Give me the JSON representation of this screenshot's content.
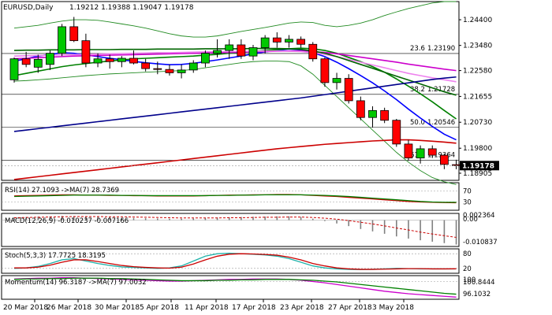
{
  "chart_data": [
    {
      "type": "candlestick",
      "title": "EURUSD,Daily",
      "ohlc_label": "1.19212 1.19388 1.19047 1.19178",
      "x_tick_labels": [
        "20 Mar 2018",
        "26 Mar 2018",
        "30 Mar 2018",
        "5 Apr 2018",
        "11 Apr 2018",
        "17 Apr 2018",
        "23 Apr 2018",
        "27 Apr 2018",
        "3 May 2018"
      ],
      "y_tick_labels": [
        "1.24400",
        "1.23480",
        "1.22580",
        "1.21655",
        "1.20730",
        "1.19800",
        "1.18905"
      ],
      "ylim": [
        1.1865,
        1.2505
      ],
      "current_price": 1.19178,
      "current_price_label": "1.19178",
      "fib_levels": [
        {
          "label": "23.6",
          "value_label": "1.23190",
          "value": 1.2319
        },
        {
          "label": "38.2",
          "value_label": "1.21728",
          "value": 1.21728
        },
        {
          "label": "50.0",
          "value_label": "1.20546",
          "value": 1.20546
        },
        {
          "label": "61.8",
          "value_label": "1.19364",
          "value": 1.19364
        }
      ],
      "candles": [
        {
          "o": 1.2225,
          "h": 1.2305,
          "l": 1.2215,
          "c": 1.23
        },
        {
          "o": 1.23,
          "h": 1.2325,
          "l": 1.227,
          "c": 1.228
        },
        {
          "o": 1.227,
          "h": 1.2315,
          "l": 1.225,
          "c": 1.2298
        },
        {
          "o": 1.228,
          "h": 1.233,
          "l": 1.226,
          "c": 1.232
        },
        {
          "o": 1.232,
          "h": 1.2425,
          "l": 1.231,
          "c": 1.2415
        },
        {
          "o": 1.2415,
          "h": 1.245,
          "l": 1.236,
          "c": 1.2365
        },
        {
          "o": 1.2365,
          "h": 1.239,
          "l": 1.227,
          "c": 1.2285
        },
        {
          "o": 1.2285,
          "h": 1.232,
          "l": 1.227,
          "c": 1.23
        },
        {
          "o": 1.23,
          "h": 1.2315,
          "l": 1.2265,
          "c": 1.229
        },
        {
          "o": 1.229,
          "h": 1.231,
          "l": 1.227,
          "c": 1.2302
        },
        {
          "o": 1.2302,
          "h": 1.233,
          "l": 1.228,
          "c": 1.2285
        },
        {
          "o": 1.2285,
          "h": 1.23,
          "l": 1.2255,
          "c": 1.2265
        },
        {
          "o": 1.2265,
          "h": 1.229,
          "l": 1.2245,
          "c": 1.2262
        },
        {
          "o": 1.2262,
          "h": 1.228,
          "l": 1.224,
          "c": 1.225
        },
        {
          "o": 1.225,
          "h": 1.228,
          "l": 1.223,
          "c": 1.226
        },
        {
          "o": 1.226,
          "h": 1.2295,
          "l": 1.225,
          "c": 1.2285
        },
        {
          "o": 1.2285,
          "h": 1.233,
          "l": 1.227,
          "c": 1.232
        },
        {
          "o": 1.232,
          "h": 1.237,
          "l": 1.2305,
          "c": 1.233
        },
        {
          "o": 1.233,
          "h": 1.237,
          "l": 1.23,
          "c": 1.235
        },
        {
          "o": 1.235,
          "h": 1.237,
          "l": 1.23,
          "c": 1.231
        },
        {
          "o": 1.231,
          "h": 1.235,
          "l": 1.2295,
          "c": 1.234
        },
        {
          "o": 1.234,
          "h": 1.2385,
          "l": 1.232,
          "c": 1.2375
        },
        {
          "o": 1.2375,
          "h": 1.2395,
          "l": 1.234,
          "c": 1.236
        },
        {
          "o": 1.236,
          "h": 1.2385,
          "l": 1.234,
          "c": 1.237
        },
        {
          "o": 1.237,
          "h": 1.238,
          "l": 1.234,
          "c": 1.2352
        },
        {
          "o": 1.2352,
          "h": 1.236,
          "l": 1.229,
          "c": 1.23
        },
        {
          "o": 1.23,
          "h": 1.2305,
          "l": 1.22,
          "c": 1.2215
        },
        {
          "o": 1.2215,
          "h": 1.225,
          "l": 1.219,
          "c": 1.223
        },
        {
          "o": 1.223,
          "h": 1.2245,
          "l": 1.214,
          "c": 1.215
        },
        {
          "o": 1.215,
          "h": 1.2165,
          "l": 1.208,
          "c": 1.209
        },
        {
          "o": 1.209,
          "h": 1.213,
          "l": 1.2055,
          "c": 1.2115
        },
        {
          "o": 1.2115,
          "h": 1.2125,
          "l": 1.207,
          "c": 1.208
        },
        {
          "o": 1.208,
          "h": 1.2085,
          "l": 1.1985,
          "c": 1.1995
        },
        {
          "o": 1.1995,
          "h": 1.201,
          "l": 1.1935,
          "c": 1.1945
        },
        {
          "o": 1.1945,
          "h": 1.199,
          "l": 1.1925,
          "c": 1.1978
        },
        {
          "o": 1.1978,
          "h": 1.199,
          "l": 1.1945,
          "c": 1.1955
        },
        {
          "o": 1.1955,
          "h": 1.196,
          "l": 1.1905,
          "c": 1.1922
        },
        {
          "o": 1.19212,
          "h": 1.19388,
          "l": 1.19047,
          "c": 1.19178
        }
      ],
      "ma_lines": [
        {
          "color": "#0000ff",
          "values": [
            1.2292,
            1.23,
            1.231,
            1.2316,
            1.2322,
            1.232,
            1.2314,
            1.2308,
            1.2302,
            1.2297,
            1.2291,
            1.2286,
            1.2282,
            1.2279,
            1.228,
            1.2284,
            1.229,
            1.2296,
            1.2303,
            1.231,
            1.2318,
            1.2325,
            1.233,
            1.2335,
            1.2332,
            1.2322,
            1.2308,
            1.2288,
            1.2265,
            1.224,
            1.2214,
            1.2185,
            1.2154,
            1.212,
            1.2088,
            1.2058,
            1.203,
            1.201
          ]
        },
        {
          "color": "#008000",
          "values": [
            1.224,
            1.2248,
            1.2256,
            1.2264,
            1.2272,
            1.2278,
            1.2283,
            1.2288,
            1.2292,
            1.2296,
            1.23,
            1.2302,
            1.2304,
            1.2306,
            1.2308,
            1.231,
            1.2313,
            1.2316,
            1.232,
            1.2323,
            1.2326,
            1.233,
            1.2333,
            1.2336,
            1.2338,
            1.2336,
            1.233,
            1.232,
            1.2305,
            1.229,
            1.2272,
            1.2252,
            1.2228,
            1.2202,
            1.2175,
            1.2146,
            1.2115,
            1.2085
          ]
        },
        {
          "color": "#cc00cc",
          "values": [
            1.23,
            1.2302,
            1.2304,
            1.2306,
            1.2308,
            1.231,
            1.2311,
            1.2312,
            1.2313,
            1.2314,
            1.2315,
            1.2316,
            1.2317,
            1.2318,
            1.2319,
            1.232,
            1.2321,
            1.2322,
            1.2323,
            1.2324,
            1.2325,
            1.2326,
            1.2327,
            1.2328,
            1.2328,
            1.2326,
            1.2323,
            1.2318,
            1.2312,
            1.2306,
            1.23,
            1.2294,
            1.2288,
            1.2281,
            1.2275,
            1.2269,
            1.2263,
            1.2258
          ]
        },
        {
          "color": "#ee82ee",
          "values": [
            1.231,
            1.2311,
            1.2312,
            1.2313,
            1.2314,
            1.2315,
            1.2316,
            1.2317,
            1.2318,
            1.2319,
            1.232,
            1.2321,
            1.2322,
            1.2322,
            1.2323,
            1.2324,
            1.2325,
            1.2326,
            1.2326,
            1.2327,
            1.2327,
            1.2328,
            1.2328,
            1.2327,
            1.2326,
            1.2322,
            1.2316,
            1.2308,
            1.2298,
            1.2288,
            1.2278,
            1.2268,
            1.2258,
            1.2248,
            1.224,
            1.2232,
            1.2225,
            1.2218
          ]
        },
        {
          "color": "#006400",
          "values": [
            1.233,
            1.2331,
            1.2331,
            1.2332,
            1.2332,
            1.2332,
            1.2333,
            1.2333,
            1.2333,
            1.2334,
            1.2334,
            1.2334,
            1.2335,
            1.2335,
            1.2335,
            1.2335,
            1.2336,
            1.2336,
            1.2336,
            1.2336,
            1.2337,
            1.2337,
            1.2337,
            1.2336,
            1.2334,
            1.2328,
            1.232,
            1.2308,
            1.2294,
            1.228,
            1.2266,
            1.2252,
            1.2238,
            1.2224,
            1.221,
            1.2196,
            1.2182,
            1.217
          ]
        },
        {
          "color": "#00008b",
          "values": [
            1.204,
            1.2045,
            1.205,
            1.2055,
            1.206,
            1.2065,
            1.207,
            1.2075,
            1.208,
            1.2085,
            1.209,
            1.2095,
            1.21,
            1.2105,
            1.211,
            1.2115,
            1.212,
            1.2125,
            1.213,
            1.2135,
            1.214,
            1.2145,
            1.215,
            1.2155,
            1.216,
            1.2166,
            1.2172,
            1.2178,
            1.2184,
            1.219,
            1.2196,
            1.2202,
            1.2208,
            1.2214,
            1.222,
            1.2226,
            1.2231,
            1.2235
          ]
        },
        {
          "color": "#cc0000",
          "values": [
            1.1868,
            1.1873,
            1.1878,
            1.1883,
            1.1888,
            1.1893,
            1.1898,
            1.1903,
            1.1908,
            1.1913,
            1.1918,
            1.1923,
            1.1928,
            1.1933,
            1.1938,
            1.1943,
            1.1948,
            1.1953,
            1.1958,
            1.1963,
            1.1968,
            1.1973,
            1.1978,
            1.1982,
            1.1986,
            1.199,
            1.1994,
            1.1997,
            1.2,
            1.2003,
            1.2006,
            1.2008,
            1.201,
            1.201,
            1.2008,
            1.2005,
            1.2002,
            1.1998
          ]
        }
      ],
      "bollinger": {
        "color": "#228b22",
        "upper": [
          1.241,
          1.2415,
          1.242,
          1.2428,
          1.2435,
          1.244,
          1.244,
          1.2438,
          1.2432,
          1.2425,
          1.2418,
          1.241,
          1.24,
          1.239,
          1.2382,
          1.2378,
          1.2378,
          1.2382,
          1.239,
          1.2398,
          1.2405,
          1.2412,
          1.242,
          1.2428,
          1.2432,
          1.243,
          1.242,
          1.2415,
          1.242,
          1.2428,
          1.244,
          1.2455,
          1.2468,
          1.248,
          1.249,
          1.25,
          1.2505,
          1.2505
        ],
        "lower": [
          1.222,
          1.2222,
          1.2225,
          1.2228,
          1.2232,
          1.2236,
          1.224,
          1.2243,
          1.2246,
          1.2248,
          1.225,
          1.2252,
          1.2254,
          1.2256,
          1.2258,
          1.2262,
          1.2268,
          1.2274,
          1.228,
          1.2286,
          1.229,
          1.2292,
          1.2292,
          1.229,
          1.2275,
          1.2245,
          1.2205,
          1.2165,
          1.2125,
          1.2085,
          1.2045,
          1.2005,
          1.1965,
          1.193,
          1.19,
          1.1875,
          1.186,
          1.185
        ]
      }
    },
    {
      "type": "line",
      "title": "RSI(14) 27.1093  ->MA(7) 28.7369",
      "y_tick_labels": [
        "70",
        "30"
      ],
      "ylim": [
        0,
        100
      ],
      "levels": [
        70,
        30
      ],
      "series": [
        {
          "color": "#cc0000",
          "values": [
            52,
            53,
            54,
            55,
            56,
            56,
            55,
            55,
            54,
            54,
            53,
            53,
            52,
            52,
            52,
            52,
            53,
            54,
            55,
            55,
            56,
            56,
            57,
            57,
            56,
            54,
            52,
            50,
            47,
            44,
            41,
            38,
            35,
            32,
            30,
            29,
            28,
            27.1
          ]
        },
        {
          "color": "#008000",
          "values": [
            50,
            51,
            52,
            53,
            54,
            55,
            55,
            55,
            55,
            54,
            54,
            53,
            53,
            53,
            53,
            53,
            53,
            54,
            54,
            55,
            55,
            56,
            56,
            56,
            56,
            55,
            54,
            52,
            50,
            47,
            44,
            41,
            38,
            35,
            32,
            30,
            29,
            28.7
          ]
        }
      ]
    },
    {
      "type": "bar",
      "title": "MACD(12,26,9) -0.010237 -0.007166",
      "y_tick_labels": [
        "0.002364",
        "0.00",
        "-0.010837"
      ],
      "ylim": [
        -0.011,
        0.0028
      ],
      "values": [
        0.0012,
        0.0013,
        0.0015,
        0.0016,
        0.0018,
        0.0017,
        0.0015,
        0.0013,
        0.0012,
        0.001,
        0.0009,
        0.0008,
        0.0007,
        0.0006,
        0.0006,
        0.0007,
        0.0009,
        0.0011,
        0.0012,
        0.0013,
        0.0014,
        0.0015,
        0.0016,
        0.0016,
        0.0013,
        0.0006,
        -0.0004,
        -0.0014,
        -0.0025,
        -0.0037,
        -0.0047,
        -0.0057,
        -0.0068,
        -0.0077,
        -0.0084,
        -0.009,
        -0.0096,
        -0.0102
      ],
      "signal": {
        "color": "#cc0000",
        "values": [
          0.001,
          0.0011,
          0.0012,
          0.0013,
          0.0014,
          0.0015,
          0.0015,
          0.0015,
          0.0014,
          0.0014,
          0.0013,
          0.0012,
          0.0011,
          0.001,
          0.0009,
          0.0009,
          0.0009,
          0.0009,
          0.001,
          0.001,
          0.0011,
          0.0012,
          0.0012,
          0.0013,
          0.0013,
          0.0011,
          0.0008,
          0.0004,
          -0.0002,
          -0.0009,
          -0.0016,
          -0.0024,
          -0.0033,
          -0.0041,
          -0.005,
          -0.0058,
          -0.0065,
          -0.0072
        ]
      }
    },
    {
      "type": "line",
      "title": "Stoch(5,3,3) 17.7725 18.3195",
      "y_tick_labels": [
        "80",
        "20"
      ],
      "ylim": [
        0,
        100
      ],
      "levels": [
        80,
        20
      ],
      "series": [
        {
          "color": "#20b2aa",
          "values": [
            20,
            22,
            28,
            40,
            55,
            60,
            50,
            40,
            32,
            26,
            24,
            22,
            20,
            22,
            30,
            50,
            70,
            80,
            82,
            80,
            78,
            75,
            70,
            60,
            45,
            30,
            22,
            18,
            16,
            15,
            16,
            18,
            20,
            19,
            18,
            18,
            18,
            17.8
          ]
        },
        {
          "color": "#cc0000",
          "values": [
            22,
            22,
            25,
            33,
            45,
            55,
            55,
            48,
            40,
            32,
            27,
            24,
            22,
            21,
            25,
            38,
            55,
            70,
            78,
            80,
            79,
            77,
            74,
            66,
            55,
            40,
            30,
            22,
            18,
            16,
            16,
            17,
            18,
            19,
            19,
            18,
            18,
            18.3
          ]
        }
      ]
    },
    {
      "type": "line",
      "title": "Momentum(14) 96.3187  ->MA(7) 97.0032",
      "y_tick_labels": [
        "100",
        "100.8444",
        "96.1032"
      ],
      "ylim": [
        95.8,
        101.4
      ],
      "levels": [
        100
      ],
      "series": [
        {
          "color": "#cc00cc",
          "values": [
            100.6,
            100.7,
            100.8,
            100.8,
            100.9,
            100.9,
            100.8,
            100.7,
            100.6,
            100.5,
            100.4,
            100.3,
            100.2,
            100.1,
            100.1,
            100.2,
            100.3,
            100.4,
            100.5,
            100.5,
            100.6,
            100.6,
            100.6,
            100.5,
            100.3,
            100.0,
            99.7,
            99.3,
            98.9,
            98.5,
            98.1,
            97.7,
            97.4,
            97.1,
            96.9,
            96.7,
            96.5,
            96.3
          ]
        },
        {
          "color": "#008000",
          "values": [
            100.5,
            100.6,
            100.6,
            100.7,
            100.7,
            100.8,
            100.8,
            100.8,
            100.7,
            100.7,
            100.6,
            100.5,
            100.4,
            100.3,
            100.2,
            100.2,
            100.2,
            100.3,
            100.3,
            100.4,
            100.4,
            100.5,
            100.5,
            100.5,
            100.4,
            100.3,
            100.1,
            99.9,
            99.6,
            99.3,
            99.0,
            98.7,
            98.4,
            98.1,
            97.8,
            97.5,
            97.2,
            97.0
          ]
        }
      ]
    }
  ]
}
